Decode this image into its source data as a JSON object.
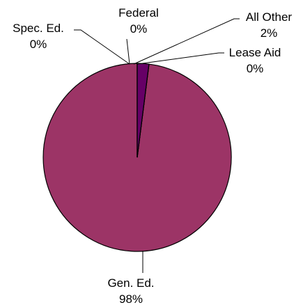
{
  "chart_data": {
    "type": "pie",
    "title": "",
    "slices": [
      {
        "label": "Gen. Ed.",
        "percent_label": "98%",
        "value": 98,
        "color": "#9c3466"
      },
      {
        "label": "Spec. Ed.",
        "percent_label": "0%",
        "value": 0,
        "color": "#9c3466"
      },
      {
        "label": "Federal",
        "percent_label": "0%",
        "value": 0,
        "color": "#ffffcc"
      },
      {
        "label": "All Other",
        "percent_label": "2%",
        "value": 2,
        "color": "#660066"
      },
      {
        "label": "Lease Aid",
        "percent_label": "0%",
        "value": 0,
        "color": "#9999ff"
      }
    ]
  }
}
